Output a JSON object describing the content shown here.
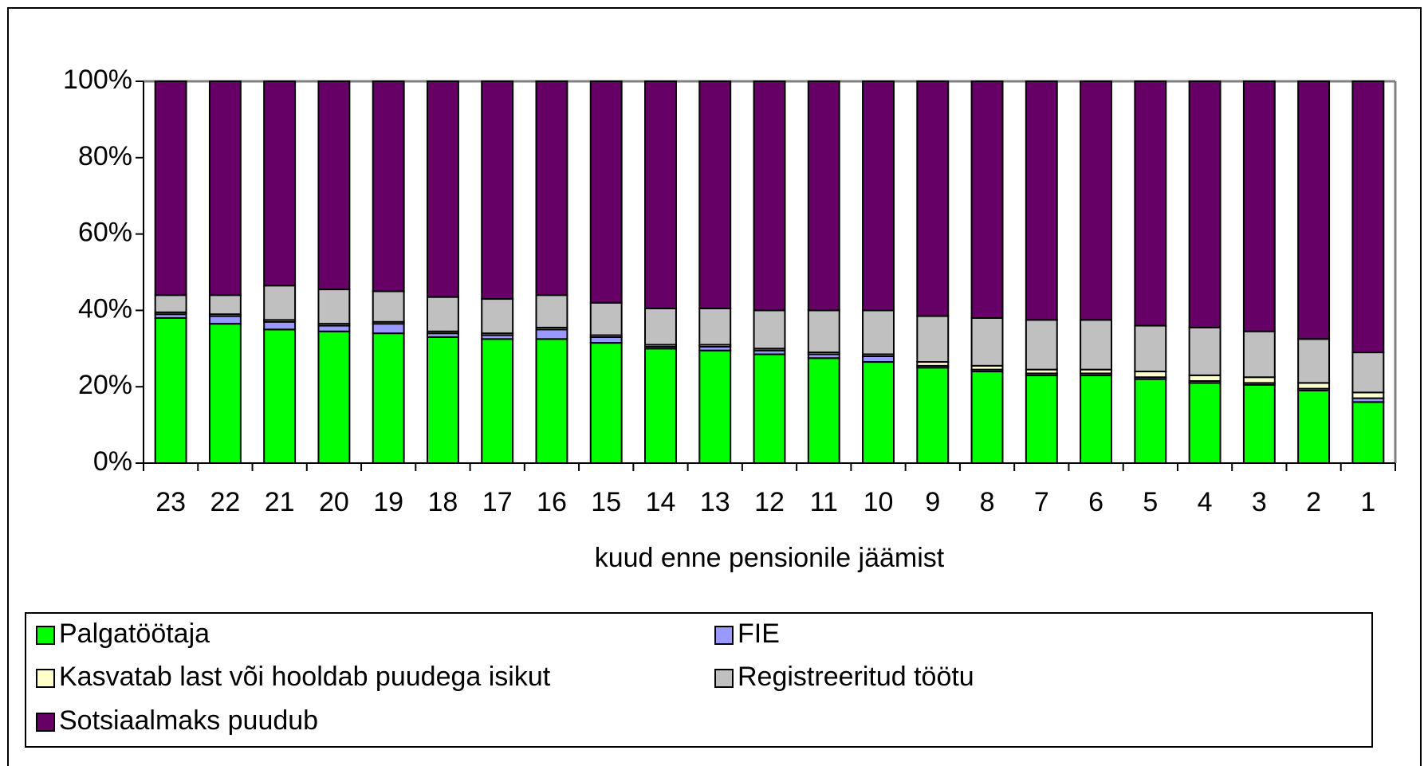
{
  "chart_data": {
    "type": "stacked_bar_100",
    "x_label": "kuud enne pensionile jäämist",
    "categories": [
      "23",
      "22",
      "21",
      "20",
      "19",
      "18",
      "17",
      "16",
      "15",
      "14",
      "13",
      "12",
      "11",
      "10",
      "9",
      "8",
      "7",
      "6",
      "5",
      "4",
      "3",
      "2",
      "1"
    ],
    "series": [
      {
        "name": "Palgatöötaja",
        "color": "#00ff00",
        "values": [
          38,
          36.5,
          35,
          34.5,
          34,
          33,
          32.5,
          32.5,
          31.5,
          30,
          29.5,
          28.5,
          27.5,
          26.5,
          25,
          24,
          23,
          23,
          22,
          21,
          20.5,
          19,
          16
        ]
      },
      {
        "name": "FIE",
        "color": "#9999ff",
        "values": [
          1,
          2,
          2,
          1.5,
          2.5,
          1,
          1,
          2.5,
          1.5,
          0.5,
          1,
          1,
          1,
          1.5,
          0.5,
          0.5,
          0.5,
          0.5,
          0.5,
          0.5,
          0.5,
          0.5,
          1
        ]
      },
      {
        "name": "Kasvatab last või hooldab puudega isikut",
        "color": "#ffffcc",
        "values": [
          0.5,
          0.5,
          0.5,
          0.5,
          0.5,
          0.5,
          0.5,
          0.5,
          0.5,
          0.5,
          0.5,
          0.5,
          0.5,
          0.5,
          1,
          1,
          1,
          1,
          1.5,
          1.5,
          1.5,
          1.5,
          1.5
        ]
      },
      {
        "name": "Registreeritud töötu",
        "color": "#c0c0c0",
        "values": [
          4.5,
          5,
          9,
          9,
          8,
          9,
          9,
          8.5,
          8.5,
          9.5,
          9.5,
          10,
          11,
          11.5,
          12,
          12.5,
          13,
          13,
          12,
          12.5,
          12,
          11.5,
          10.5
        ]
      },
      {
        "name": "Sotsiaalmaks puudub",
        "color": "#660066",
        "values": [
          56,
          56,
          53.5,
          54.5,
          55,
          56.5,
          57,
          56,
          58,
          59.5,
          59.5,
          60,
          60,
          60,
          61.5,
          62,
          62.5,
          62.5,
          64,
          64.5,
          65.5,
          67.5,
          71
        ]
      }
    ],
    "ylim": [
      0,
      100
    ],
    "yticks": [
      {
        "value": 0,
        "label": "0%"
      },
      {
        "value": 20,
        "label": "20%"
      },
      {
        "value": 40,
        "label": "40%"
      },
      {
        "value": 60,
        "label": "60%"
      },
      {
        "value": 80,
        "label": "80%"
      },
      {
        "value": 100,
        "label": "100%"
      }
    ],
    "legend": "bottom"
  }
}
